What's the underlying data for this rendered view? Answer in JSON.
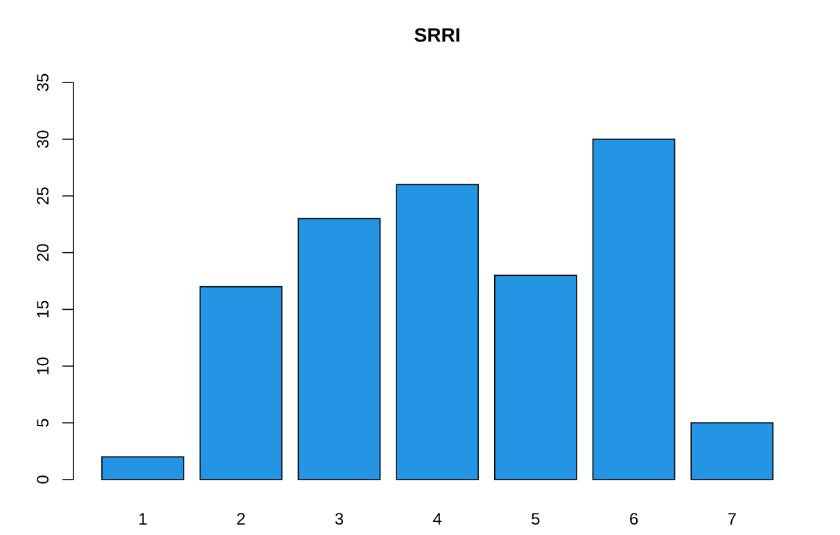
{
  "chart_data": {
    "type": "bar",
    "title": "SRRI",
    "xlabel": "",
    "ylabel": "",
    "categories": [
      "1",
      "2",
      "3",
      "4",
      "5",
      "6",
      "7"
    ],
    "values": [
      2,
      17,
      23,
      26,
      18,
      30,
      5
    ],
    "ylim": [
      0,
      35
    ],
    "yticks": [
      "0",
      "5",
      "10",
      "15",
      "20",
      "25",
      "30",
      "35"
    ],
    "bar_color": "#2495E4",
    "grid": false,
    "legend": "none"
  }
}
